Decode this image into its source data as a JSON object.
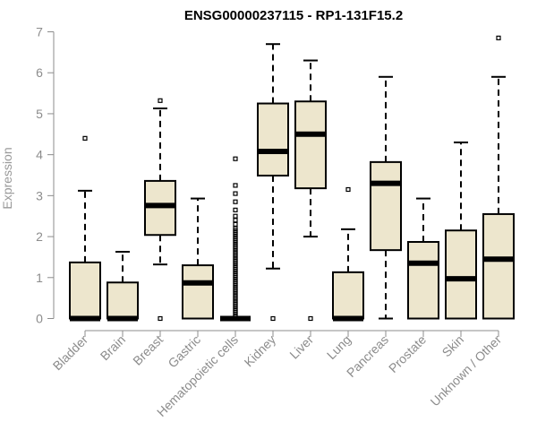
{
  "chart_data": {
    "type": "boxplot",
    "title": "ENSG00000237115 - RP1-131F15.2",
    "xlabel": "",
    "ylabel": "Expression",
    "ylim": [
      0,
      7
    ],
    "yticks": [
      0,
      1,
      2,
      3,
      4,
      5,
      6,
      7
    ],
    "grid": false,
    "colors": {
      "box_fill": "#ede6cd",
      "box_stroke": "#000000",
      "axis": "#8c8c8c"
    },
    "categories": [
      "Bladder",
      "Brain",
      "Breast",
      "Gastric",
      "Hematopoietic cells",
      "Kidney",
      "Liver",
      "Lung",
      "Pancreas",
      "Prostate",
      "Skin",
      "Unknown / Other"
    ],
    "boxes": [
      {
        "name": "Bladder",
        "whisker_low": 0,
        "q1": 0,
        "median": 0,
        "q3": 1.37,
        "whisker_high": 3.12,
        "outliers": [
          4.4
        ]
      },
      {
        "name": "Brain",
        "whisker_low": 0,
        "q1": 0,
        "median": 0,
        "q3": 0.88,
        "whisker_high": 1.63,
        "outliers": []
      },
      {
        "name": "Breast",
        "whisker_low": 1.32,
        "q1": 2.04,
        "median": 2.76,
        "q3": 3.36,
        "whisker_high": 5.13,
        "outliers": [
          0,
          5.32
        ]
      },
      {
        "name": "Gastric",
        "whisker_low": 0,
        "q1": 0,
        "median": 0.87,
        "q3": 1.3,
        "whisker_high": 2.93,
        "outliers": []
      },
      {
        "name": "Hematopoietic cells",
        "whisker_low": 0,
        "q1": 0,
        "median": 0,
        "q3": 0,
        "whisker_high": 0,
        "outliers": [
          3.9,
          3.25,
          3.05,
          2.85,
          2.65,
          2.5,
          2.4,
          2.3,
          2.2,
          2.15,
          2.1,
          2.05,
          2.0,
          1.95,
          1.9,
          1.85,
          1.8,
          1.75,
          1.7,
          1.65,
          1.6,
          1.55,
          1.5,
          1.45,
          1.4,
          1.35,
          1.3,
          1.25,
          1.2,
          1.15,
          1.1,
          1.05,
          1.0,
          0.95,
          0.9,
          0.85,
          0.8,
          0.75,
          0.7,
          0.65,
          0.6,
          0.55,
          0.5,
          0.45,
          0.4,
          0.35,
          0.3,
          0.25,
          0.2,
          0.15,
          0.1,
          0.05
        ]
      },
      {
        "name": "Kidney",
        "whisker_low": 1.22,
        "q1": 3.49,
        "median": 4.08,
        "q3": 5.25,
        "whisker_high": 6.7,
        "outliers": [
          0
        ]
      },
      {
        "name": "Liver",
        "whisker_low": 2.0,
        "q1": 3.18,
        "median": 4.5,
        "q3": 5.3,
        "whisker_high": 6.3,
        "outliers": [
          0
        ]
      },
      {
        "name": "Lung",
        "whisker_low": 0,
        "q1": 0,
        "median": 0,
        "q3": 1.13,
        "whisker_high": 2.18,
        "outliers": [
          3.15
        ]
      },
      {
        "name": "Pancreas",
        "whisker_low": 0,
        "q1": 1.67,
        "median": 3.3,
        "q3": 3.82,
        "whisker_high": 5.9,
        "outliers": []
      },
      {
        "name": "Prostate",
        "whisker_low": 0,
        "q1": 0,
        "median": 1.35,
        "q3": 1.87,
        "whisker_high": 2.93,
        "outliers": []
      },
      {
        "name": "Skin",
        "whisker_low": 0,
        "q1": 0,
        "median": 0.97,
        "q3": 2.15,
        "whisker_high": 4.3,
        "outliers": []
      },
      {
        "name": "Unknown / Other",
        "whisker_low": 0,
        "q1": 0,
        "median": 1.45,
        "q3": 2.55,
        "whisker_high": 5.9,
        "outliers": [
          6.85
        ]
      }
    ]
  }
}
